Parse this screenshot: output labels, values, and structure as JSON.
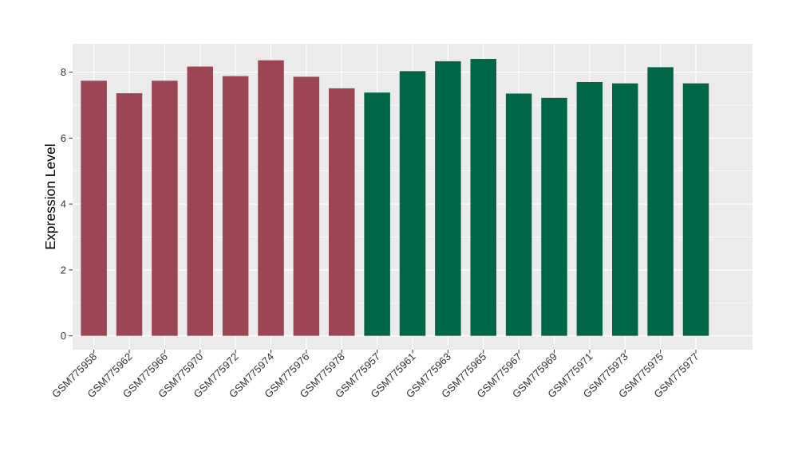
{
  "chart_data": {
    "type": "bar",
    "title": "",
    "xlabel": "",
    "ylabel": "Expression Level",
    "categories": [
      "GSM775958",
      "GSM775962",
      "GSM775966",
      "GSM775970",
      "GSM775972",
      "GSM775974",
      "GSM775976",
      "GSM775978",
      "GSM775957",
      "GSM775961",
      "GSM775963",
      "GSM775965",
      "GSM775967",
      "GSM775969",
      "GSM775971",
      "GSM775973",
      "GSM775975",
      "GSM775977"
    ],
    "values": [
      7.74,
      7.36,
      7.74,
      8.17,
      7.88,
      8.36,
      7.86,
      7.51,
      7.38,
      8.03,
      8.33,
      8.4,
      7.35,
      7.22,
      7.7,
      7.66,
      8.15,
      7.66
    ],
    "bar_colors": [
      "#9C4553",
      "#9C4553",
      "#9C4553",
      "#9C4553",
      "#9C4553",
      "#9C4553",
      "#9C4553",
      "#9C4553",
      "#006647",
      "#006647",
      "#006647",
      "#006647",
      "#006647",
      "#006647",
      "#006647",
      "#006647",
      "#006647",
      "#006647"
    ],
    "group_colors": {
      "left_group": "#9C4553",
      "right_group": "#006647"
    },
    "yticks": [
      0,
      2,
      4,
      6,
      8
    ],
    "yticks_minor": [
      1,
      3,
      5,
      7
    ],
    "ylim": [
      -0.42,
      8.86
    ],
    "x_tick_rotation": 45,
    "legend_position": "none",
    "grid": "on",
    "panel_background": "#EBEBEB",
    "gridline_color": "#FFFFFF",
    "figure_background": "#FFFFFF",
    "tick_color": "#333333",
    "tick_label_color": "#333333",
    "axis_title_color": "#000000"
  }
}
